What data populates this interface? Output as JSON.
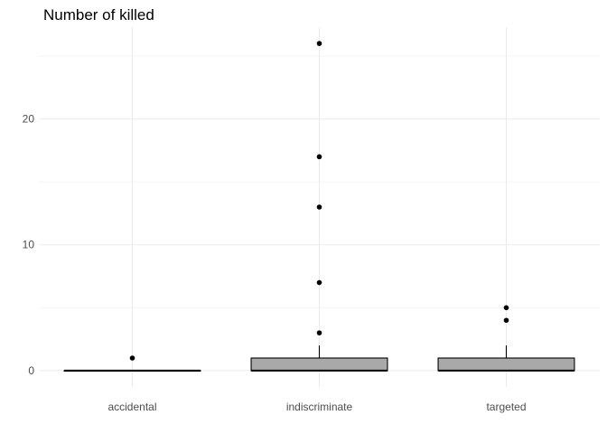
{
  "chart_data": {
    "type": "box",
    "title": "Number of killed",
    "xlabel": "",
    "ylabel": "",
    "categories": [
      "accidental",
      "indiscriminate",
      "targeted"
    ],
    "ylim": [
      -1.3,
      27.3
    ],
    "y_ticks": [
      0,
      10,
      20
    ],
    "y_tick_labels": [
      "0",
      "10",
      "20"
    ],
    "y_minor_ticks": [
      5,
      15,
      25
    ],
    "grid": true,
    "legend": "none",
    "box_color": "#a9a9a9",
    "boxes": [
      {
        "category": "accidental",
        "min": 0,
        "q1": 0,
        "median": 0,
        "q3": 0,
        "max": 0,
        "outliers": [
          1
        ]
      },
      {
        "category": "indiscriminate",
        "min": 0,
        "q1": 0,
        "median": 0,
        "q3": 1,
        "max": 2,
        "outliers": [
          3,
          7,
          13,
          17,
          26
        ]
      },
      {
        "category": "targeted",
        "min": 0,
        "q1": 0,
        "median": 0,
        "q3": 1,
        "max": 2,
        "outliers": [
          4,
          5
        ]
      }
    ]
  }
}
